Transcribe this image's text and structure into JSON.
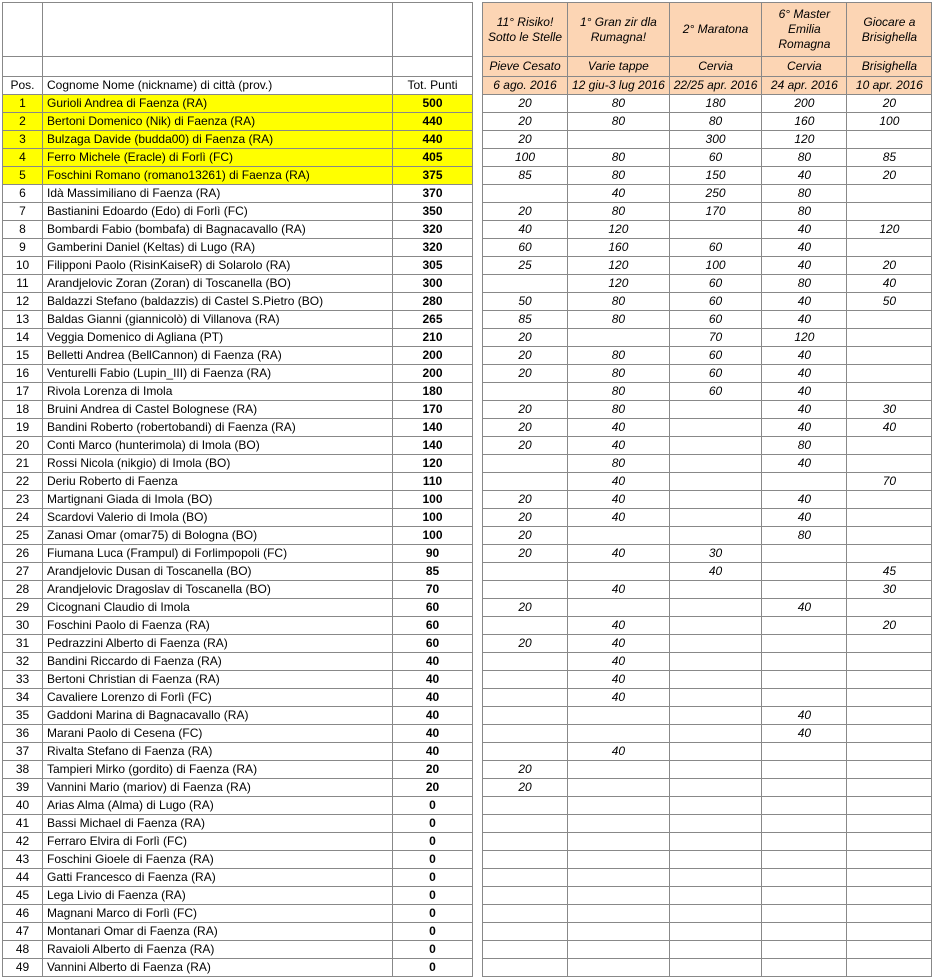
{
  "colors": {
    "highlight": "#ffff00",
    "header_peach": "#fcd5b4",
    "grid": "#888888",
    "bg": "#ffffff",
    "text": "#000000"
  },
  "main_headers": {
    "pos": "Pos.",
    "name": "Cognome Nome (nickname) di città (prov.)",
    "tot": "Tot. Punti"
  },
  "events": [
    {
      "title": "11° Risiko! Sotto le Stelle",
      "place": "Pieve Cesato",
      "date": "6 ago. 2016"
    },
    {
      "title": "1° Gran zir dla Rumagna!",
      "place": "Varie tappe",
      "date": "12 giu-3 lug 2016"
    },
    {
      "title": "2° Maratona",
      "place": "Cervia",
      "date": "22/25 apr. 2016"
    },
    {
      "title": "6° Master Emilia Romagna",
      "place": "Cervia",
      "date": "24 apr. 2016"
    },
    {
      "title": "Giocare a Brisighella",
      "place": "Brisighella",
      "date": "10 apr. 2016"
    }
  ],
  "rows": [
    {
      "pos": "1",
      "name": "Gurioli Andrea di Faenza (RA)",
      "tot": "500",
      "s": [
        "20",
        "80",
        "180",
        "200",
        "20"
      ],
      "hi": true
    },
    {
      "pos": "2",
      "name": "Bertoni Domenico (Nik) di Faenza (RA)",
      "tot": "440",
      "s": [
        "20",
        "80",
        "80",
        "160",
        "100"
      ],
      "hi": true
    },
    {
      "pos": "3",
      "name": "Bulzaga Davide (budda00) di Faenza (RA)",
      "tot": "440",
      "s": [
        "20",
        "",
        "300",
        "120",
        ""
      ],
      "hi": true
    },
    {
      "pos": "4",
      "name": "Ferro Michele (Eracle) di Forlì (FC)",
      "tot": "405",
      "s": [
        "100",
        "80",
        "60",
        "80",
        "85"
      ],
      "hi": true
    },
    {
      "pos": "5",
      "name": "Foschini Romano (romano13261) di Faenza (RA)",
      "tot": "375",
      "s": [
        "85",
        "80",
        "150",
        "40",
        "20"
      ],
      "hi": true
    },
    {
      "pos": "6",
      "name": "Idà Massimiliano di Faenza (RA)",
      "tot": "370",
      "s": [
        "",
        "40",
        "250",
        "80",
        ""
      ]
    },
    {
      "pos": "7",
      "name": "Bastianini Edoardo (Edo) di Forlì (FC)",
      "tot": "350",
      "s": [
        "20",
        "80",
        "170",
        "80",
        ""
      ]
    },
    {
      "pos": "8",
      "name": "Bombardi Fabio (bombafa) di Bagnacavallo (RA)",
      "tot": "320",
      "s": [
        "40",
        "120",
        "",
        "40",
        "120"
      ]
    },
    {
      "pos": "9",
      "name": "Gamberini Daniel (Keltas) di Lugo (RA)",
      "tot": "320",
      "s": [
        "60",
        "160",
        "60",
        "40",
        ""
      ]
    },
    {
      "pos": "10",
      "name": "Filipponi Paolo (RisinKaiseR) di Solarolo (RA)",
      "tot": "305",
      "s": [
        "25",
        "120",
        "100",
        "40",
        "20"
      ]
    },
    {
      "pos": "11",
      "name": "Arandjelovic Zoran (Zoran) di Toscanella (BO)",
      "tot": "300",
      "s": [
        "",
        "120",
        "60",
        "80",
        "40"
      ]
    },
    {
      "pos": "12",
      "name": "Baldazzi Stefano (baldazzis) di Castel S.Pietro (BO)",
      "tot": "280",
      "s": [
        "50",
        "80",
        "60",
        "40",
        "50"
      ]
    },
    {
      "pos": "13",
      "name": "Baldas Gianni (giannicolò) di Villanova (RA)",
      "tot": "265",
      "s": [
        "85",
        "80",
        "60",
        "40",
        ""
      ]
    },
    {
      "pos": "14",
      "name": "Veggia Domenico di Agliana (PT)",
      "tot": "210",
      "s": [
        "20",
        "",
        "70",
        "120",
        ""
      ]
    },
    {
      "pos": "15",
      "name": "Belletti Andrea (BellCannon) di Faenza (RA)",
      "tot": "200",
      "s": [
        "20",
        "80",
        "60",
        "40",
        ""
      ]
    },
    {
      "pos": "16",
      "name": "Venturelli Fabio (Lupin_III) di Faenza (RA)",
      "tot": "200",
      "s": [
        "20",
        "80",
        "60",
        "40",
        ""
      ]
    },
    {
      "pos": "17",
      "name": "Rivola Lorenza di Imola",
      "tot": "180",
      "s": [
        "",
        "80",
        "60",
        "40",
        ""
      ]
    },
    {
      "pos": "18",
      "name": "Bruini Andrea di Castel Bolognese (RA)",
      "tot": "170",
      "s": [
        "20",
        "80",
        "",
        "40",
        "30"
      ]
    },
    {
      "pos": "19",
      "name": "Bandini Roberto (robertobandi) di Faenza (RA)",
      "tot": "140",
      "s": [
        "20",
        "40",
        "",
        "40",
        "40"
      ]
    },
    {
      "pos": "20",
      "name": "Conti Marco (hunterimola) di Imola (BO)",
      "tot": "140",
      "s": [
        "20",
        "40",
        "",
        "80",
        ""
      ]
    },
    {
      "pos": "21",
      "name": "Rossi Nicola (nikgio) di Imola (BO)",
      "tot": "120",
      "s": [
        "",
        "80",
        "",
        "40",
        ""
      ]
    },
    {
      "pos": "22",
      "name": "Deriu Roberto di Faenza",
      "tot": "110",
      "s": [
        "",
        "40",
        "",
        "",
        "70"
      ]
    },
    {
      "pos": "23",
      "name": "Martignani Giada di Imola (BO)",
      "tot": "100",
      "s": [
        "20",
        "40",
        "",
        "40",
        ""
      ]
    },
    {
      "pos": "24",
      "name": "Scardovi Valerio di Imola (BO)",
      "tot": "100",
      "s": [
        "20",
        "40",
        "",
        "40",
        ""
      ]
    },
    {
      "pos": "25",
      "name": "Zanasi Omar (omar75) di Bologna (BO)",
      "tot": "100",
      "s": [
        "20",
        "",
        "",
        "80",
        ""
      ]
    },
    {
      "pos": "26",
      "name": "Fiumana Luca (Frampul) di Forlimpopoli (FC)",
      "tot": "90",
      "s": [
        "20",
        "40",
        "30",
        "",
        ""
      ]
    },
    {
      "pos": "27",
      "name": "Arandjelovic Dusan di Toscanella (BO)",
      "tot": "85",
      "s": [
        "",
        "",
        "40",
        "",
        "45"
      ]
    },
    {
      "pos": "28",
      "name": "Arandjelovic Dragoslav di Toscanella (BO)",
      "tot": "70",
      "s": [
        "",
        "40",
        "",
        "",
        "30"
      ]
    },
    {
      "pos": "29",
      "name": "Cicognani Claudio di Imola",
      "tot": "60",
      "s": [
        "20",
        "",
        "",
        "40",
        ""
      ]
    },
    {
      "pos": "30",
      "name": "Foschini Paolo di Faenza (RA)",
      "tot": "60",
      "s": [
        "",
        "40",
        "",
        "",
        "20"
      ]
    },
    {
      "pos": "31",
      "name": "Pedrazzini Alberto di Faenza (RA)",
      "tot": "60",
      "s": [
        "20",
        "40",
        "",
        "",
        ""
      ]
    },
    {
      "pos": "32",
      "name": "Bandini Riccardo di Faenza (RA)",
      "tot": "40",
      "s": [
        "",
        "40",
        "",
        "",
        ""
      ]
    },
    {
      "pos": "33",
      "name": "Bertoni Christian di Faenza (RA)",
      "tot": "40",
      "s": [
        "",
        "40",
        "",
        "",
        ""
      ]
    },
    {
      "pos": "34",
      "name": "Cavaliere Lorenzo di Forlì (FC)",
      "tot": "40",
      "s": [
        "",
        "40",
        "",
        "",
        ""
      ]
    },
    {
      "pos": "35",
      "name": "Gaddoni Marina di Bagnacavallo (RA)",
      "tot": "40",
      "s": [
        "",
        "",
        "",
        "40",
        ""
      ]
    },
    {
      "pos": "36",
      "name": "Marani Paolo di Cesena (FC)",
      "tot": "40",
      "s": [
        "",
        "",
        "",
        "40",
        ""
      ]
    },
    {
      "pos": "37",
      "name": "Rivalta Stefano di Faenza (RA)",
      "tot": "40",
      "s": [
        "",
        "40",
        "",
        "",
        ""
      ]
    },
    {
      "pos": "38",
      "name": "Tampieri Mirko (gordito) di Faenza (RA)",
      "tot": "20",
      "s": [
        "20",
        "",
        "",
        "",
        ""
      ]
    },
    {
      "pos": "39",
      "name": "Vannini Mario (mariov) di Faenza (RA)",
      "tot": "20",
      "s": [
        "20",
        "",
        "",
        "",
        ""
      ]
    },
    {
      "pos": "40",
      "name": "Arias Alma (Alma) di Lugo (RA)",
      "tot": "0",
      "s": [
        "",
        "",
        "",
        "",
        ""
      ]
    },
    {
      "pos": "41",
      "name": "Bassi Michael di Faenza (RA)",
      "tot": "0",
      "s": [
        "",
        "",
        "",
        "",
        ""
      ]
    },
    {
      "pos": "42",
      "name": "Ferraro Elvira di Forlì (FC)",
      "tot": "0",
      "s": [
        "",
        "",
        "",
        "",
        ""
      ]
    },
    {
      "pos": "43",
      "name": "Foschini Gioele di Faenza (RA)",
      "tot": "0",
      "s": [
        "",
        "",
        "",
        "",
        ""
      ]
    },
    {
      "pos": "44",
      "name": "Gatti Francesco di Faenza (RA)",
      "tot": "0",
      "s": [
        "",
        "",
        "",
        "",
        ""
      ]
    },
    {
      "pos": "45",
      "name": "Lega Livio di Faenza (RA)",
      "tot": "0",
      "s": [
        "",
        "",
        "",
        "",
        ""
      ]
    },
    {
      "pos": "46",
      "name": "Magnani Marco di Forlì (FC)",
      "tot": "0",
      "s": [
        "",
        "",
        "",
        "",
        ""
      ]
    },
    {
      "pos": "47",
      "name": "Montanari Omar di Faenza (RA)",
      "tot": "0",
      "s": [
        "",
        "",
        "",
        "",
        ""
      ]
    },
    {
      "pos": "48",
      "name": "Ravaioli Alberto di Faenza (RA)",
      "tot": "0",
      "s": [
        "",
        "",
        "",
        "",
        ""
      ]
    },
    {
      "pos": "49",
      "name": "Vannini Alberto di Faenza (RA)",
      "tot": "0",
      "s": [
        "",
        "",
        "",
        "",
        ""
      ]
    }
  ]
}
